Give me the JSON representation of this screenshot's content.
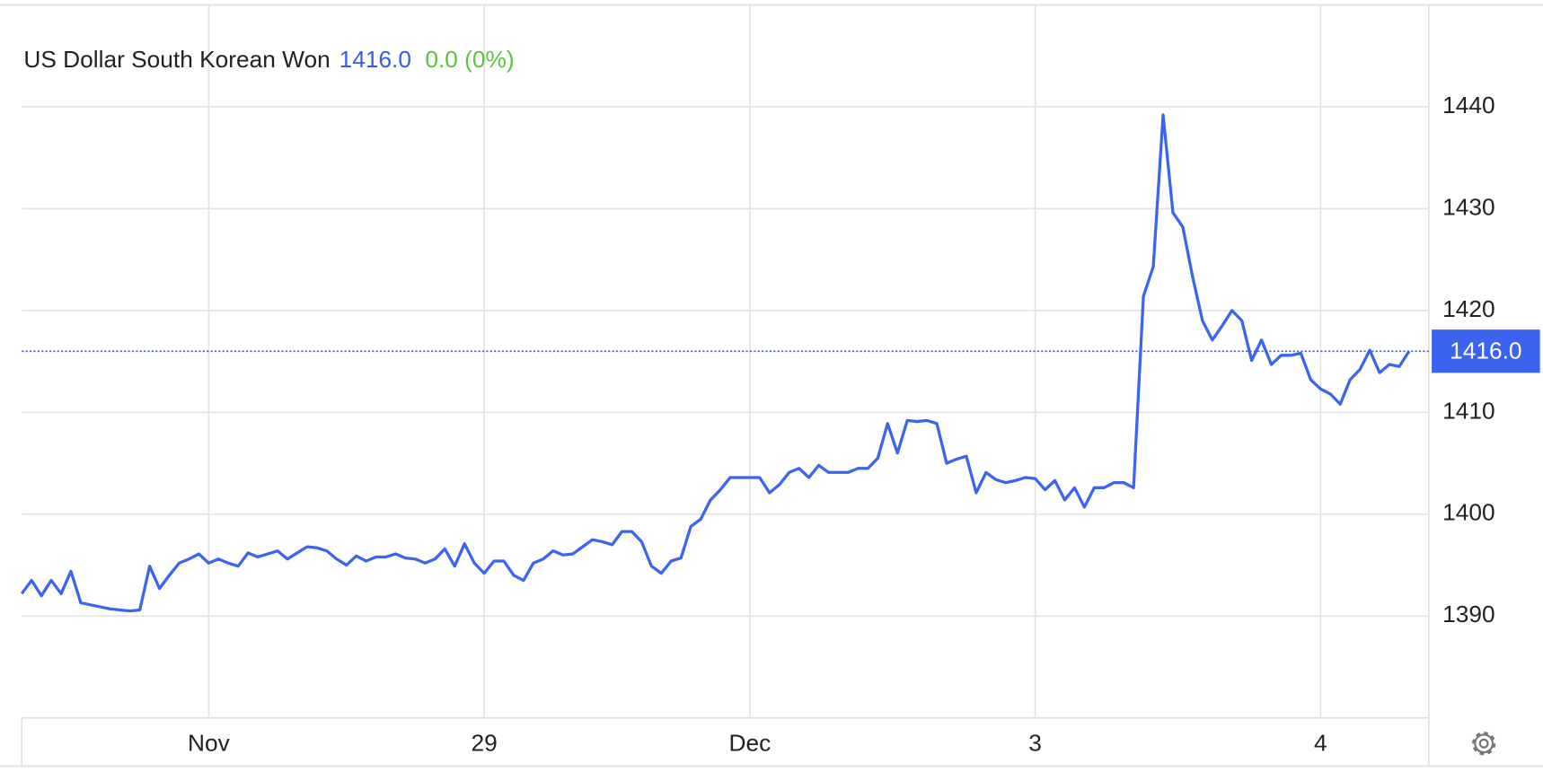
{
  "chart_data": {
    "type": "line",
    "title": "US Dollar South Korean Won",
    "price": {
      "value": 1416,
      "label": "1416.0"
    },
    "change": "0.0 (0%)",
    "categories": [
      null,
      null,
      null,
      null,
      null,
      null,
      null,
      null,
      null,
      null,
      null,
      null,
      null,
      null,
      null,
      null,
      null,
      null,
      null,
      "Nov",
      null,
      null,
      null,
      null,
      null,
      null,
      null,
      null,
      null,
      null,
      null,
      null,
      null,
      null,
      null,
      null,
      null,
      null,
      null,
      null,
      null,
      null,
      null,
      null,
      null,
      null,
      null,
      "29",
      null,
      null,
      null,
      null,
      null,
      null,
      null,
      null,
      null,
      null,
      null,
      null,
      null,
      null,
      null,
      null,
      null,
      null,
      null,
      null,
      null,
      null,
      null,
      null,
      null,
      null,
      "Dec",
      null,
      null,
      null,
      null,
      null,
      null,
      null,
      null,
      null,
      null,
      null,
      null,
      null,
      null,
      null,
      null,
      null,
      null,
      null,
      null,
      null,
      null,
      null,
      null,
      null,
      null,
      null,
      null,
      "3",
      null,
      null,
      null,
      null,
      null,
      null,
      null,
      null,
      null,
      null,
      null,
      null,
      null,
      null,
      null,
      null,
      null,
      null,
      null,
      null,
      null,
      null,
      null,
      null,
      null,
      null,
      null,
      null,
      "4",
      null,
      null,
      null,
      null,
      null,
      null,
      null,
      null,
      null
    ],
    "series": [
      {
        "name": "USDKRW",
        "color": "#3c64ee",
        "values": [
          1392.2,
          1393.5,
          1392.0,
          1393.5,
          1392.2,
          1394.4,
          1391.3,
          1391.1,
          1390.9,
          1390.7,
          1390.6,
          1390.5,
          1390.6,
          1394.9,
          1392.7,
          1394.0,
          1395.2,
          1395.6,
          1396.1,
          1395.2,
          1395.6,
          1395.2,
          1394.9,
          1396.2,
          1395.8,
          1396.1,
          1396.4,
          1395.6,
          1396.2,
          1396.8,
          1396.7,
          1396.4,
          1395.6,
          1395.0,
          1395.9,
          1395.4,
          1395.8,
          1395.8,
          1396.1,
          1395.7,
          1395.6,
          1395.2,
          1395.6,
          1396.6,
          1394.9,
          1397.1,
          1395.2,
          1394.2,
          1395.4,
          1395.4,
          1394.0,
          1393.5,
          1395.2,
          1395.6,
          1396.4,
          1396.0,
          1396.1,
          1396.8,
          1397.5,
          1397.3,
          1397.0,
          1398.3,
          1398.3,
          1397.3,
          1394.9,
          1394.2,
          1395.4,
          1395.7,
          1398.8,
          1399.5,
          1401.4,
          1402.4,
          1403.6,
          1403.6,
          1403.6,
          1403.6,
          1402.1,
          1402.9,
          1404.1,
          1404.5,
          1403.6,
          1404.8,
          1404.1,
          1404.1,
          1404.1,
          1404.5,
          1404.5,
          1405.5,
          1408.9,
          1406.0,
          1409.2,
          1409.1,
          1409.2,
          1408.9,
          1405.0,
          1405.4,
          1405.7,
          1402.1,
          1404.1,
          1403.4,
          1403.1,
          1403.3,
          1403.6,
          1403.5,
          1402.4,
          1403.3,
          1401.4,
          1402.6,
          1400.7,
          1402.6,
          1402.6,
          1403.1,
          1403.1,
          1402.6,
          1421.4,
          1424.3,
          1439.2,
          1429.6,
          1428.2,
          1423.3,
          1419.0,
          1417.1,
          1418.5,
          1420.0,
          1419.0,
          1415.1,
          1417.1,
          1414.7,
          1415.6,
          1415.6,
          1415.8,
          1413.2,
          1412.3,
          1411.8,
          1410.8,
          1413.2,
          1414.2,
          1416.1,
          1413.9,
          1414.7,
          1414.5,
          1416.0
        ]
      }
    ],
    "ylim": [
      1380,
      1450
    ],
    "yticks": [
      1390,
      1400,
      1410,
      1420,
      1430,
      1440
    ],
    "grid": true
  }
}
